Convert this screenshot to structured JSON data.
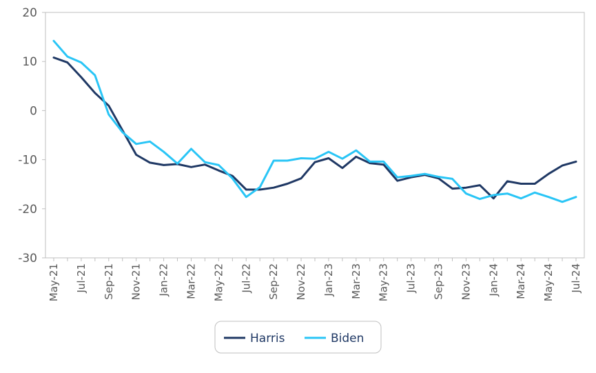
{
  "chart_data": {
    "type": "line",
    "title": "",
    "xlabel": "",
    "ylabel": "",
    "ylim": [
      -30,
      20
    ],
    "yticks": [
      20,
      10,
      0,
      -10,
      -20,
      -30
    ],
    "grid": false,
    "legend": "bottom-center",
    "x": [
      "May-21",
      "Jun-21",
      "Jul-21",
      "Aug-21",
      "Sep-21",
      "Oct-21",
      "Nov-21",
      "Dec-21",
      "Jan-22",
      "Feb-22",
      "Mar-22",
      "Apr-22",
      "May-22",
      "Jun-22",
      "Jul-22",
      "Aug-22",
      "Sep-22",
      "Oct-22",
      "Nov-22",
      "Dec-22",
      "Jan-23",
      "Feb-23",
      "Mar-23",
      "Apr-23",
      "May-23",
      "Jun-23",
      "Jul-23",
      "Aug-23",
      "Sep-23",
      "Oct-23",
      "Nov-23",
      "Dec-23",
      "Jan-24",
      "Feb-24",
      "Mar-24",
      "Apr-24",
      "May-24",
      "Jun-24",
      "Jul-24"
    ],
    "xtick_labels": [
      "May-21",
      "Jul-21",
      "Sep-21",
      "Nov-21",
      "Jan-22",
      "Mar-22",
      "May-22",
      "Jul-22",
      "Sep-22",
      "Nov-22",
      "Jan-23",
      "Mar-23",
      "May-23",
      "Jul-23",
      "Sep-23",
      "Nov-23",
      "Jan-24",
      "Mar-24",
      "May-24",
      "Jul-24"
    ],
    "series": [
      {
        "name": "Harris",
        "color": "#1f3864",
        "values": [
          10.8,
          9.8,
          6.8,
          3.6,
          1.0,
          -4.0,
          -9.0,
          -10.6,
          -11.1,
          -10.9,
          -11.5,
          -11.0,
          -12.2,
          -13.3,
          -16.1,
          -16.1,
          -15.7,
          -14.9,
          -13.8,
          -10.5,
          -9.7,
          -11.7,
          -9.4,
          -10.7,
          -11.0,
          -14.3,
          -13.6,
          -13.1,
          -13.8,
          -15.9,
          -15.7,
          -15.2,
          -17.9,
          -14.4,
          -14.9,
          -14.9,
          -12.9,
          -11.2,
          -10.4
        ]
      },
      {
        "name": "Biden",
        "color": "#29c5f6",
        "values": [
          14.2,
          11.0,
          9.8,
          7.2,
          -0.8,
          -4.4,
          -6.8,
          -6.3,
          -8.4,
          -10.8,
          -7.8,
          -10.5,
          -11.1,
          -13.8,
          -17.6,
          -15.6,
          -10.2,
          -10.2,
          -9.7,
          -9.8,
          -8.4,
          -9.8,
          -8.1,
          -10.4,
          -10.4,
          -13.6,
          -13.3,
          -12.9,
          -13.5,
          -13.9,
          -16.9,
          -18.0,
          -17.2,
          -16.9,
          -17.9,
          -16.7,
          -17.6,
          -18.6,
          -17.6
        ]
      }
    ]
  }
}
